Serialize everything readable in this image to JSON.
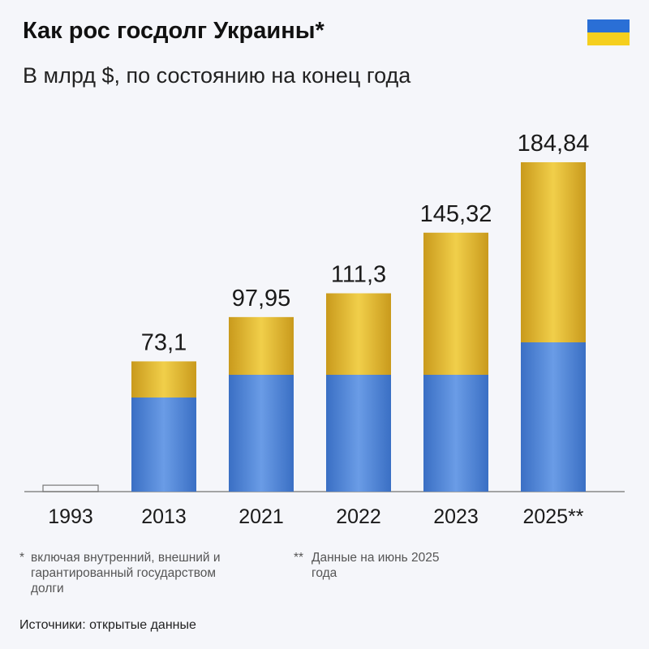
{
  "title": "Как рос госдолг Украины*",
  "subtitle": "В млрд $, по состоянию на конец года",
  "colors": {
    "yellow": "#e8c03a",
    "blue": "#4f86d9",
    "flag_blue": "#2a6fd6",
    "flag_yellow": "#f5cf1e"
  },
  "chart_data": {
    "type": "bar",
    "title": "Как рос госдолг Украины*",
    "subtitle": "В млрд $, по состоянию на конец года",
    "categories": [
      "1993",
      "2013",
      "2021",
      "2022",
      "2023",
      "2025**"
    ],
    "values": [
      3.6,
      73.1,
      97.95,
      111.3,
      145.32,
      184.84
    ],
    "labels": [
      "",
      "73,1",
      "97,95",
      "111,3",
      "145,32",
      "184,84"
    ],
    "ylim": [
      0,
      184.84
    ],
    "grid": false
  },
  "footnotes": {
    "one_star": "*",
    "one": "включая внутренний, внешний и гарантированный государством долги",
    "two_star": "**",
    "two": "Данные на июнь 2025 года"
  },
  "source": "Источники: открытые данные"
}
